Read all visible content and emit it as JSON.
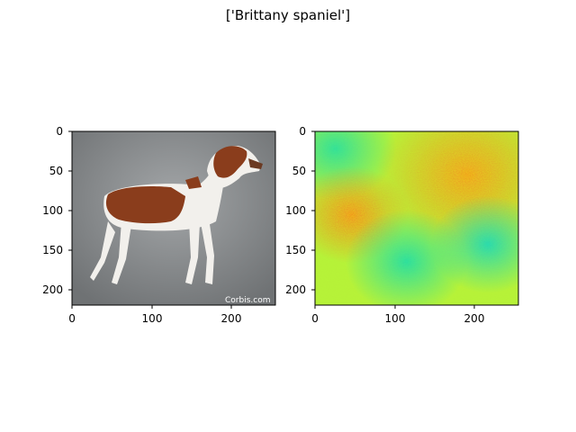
{
  "figure": {
    "title": "['Brittany spaniel']",
    "watermark": "Corbis.com"
  },
  "panels": [
    {
      "id": "photo",
      "x_ticks": [
        "0",
        "100",
        "200"
      ],
      "y_ticks": [
        "0",
        "50",
        "100",
        "150",
        "200"
      ]
    },
    {
      "id": "saliency-map",
      "x_ticks": [
        "0",
        "100",
        "200"
      ],
      "y_ticks": [
        "0",
        "50",
        "100",
        "150",
        "200"
      ]
    }
  ],
  "colors": {
    "photo_background": "#8a8d8f",
    "dog_brown": "#8a3d1c",
    "dog_white": "#f2f0ec",
    "heatmap_low": "#2fd6a0",
    "heatmap_mid": "#b6ee3a",
    "heatmap_high": "#f08a1e"
  }
}
